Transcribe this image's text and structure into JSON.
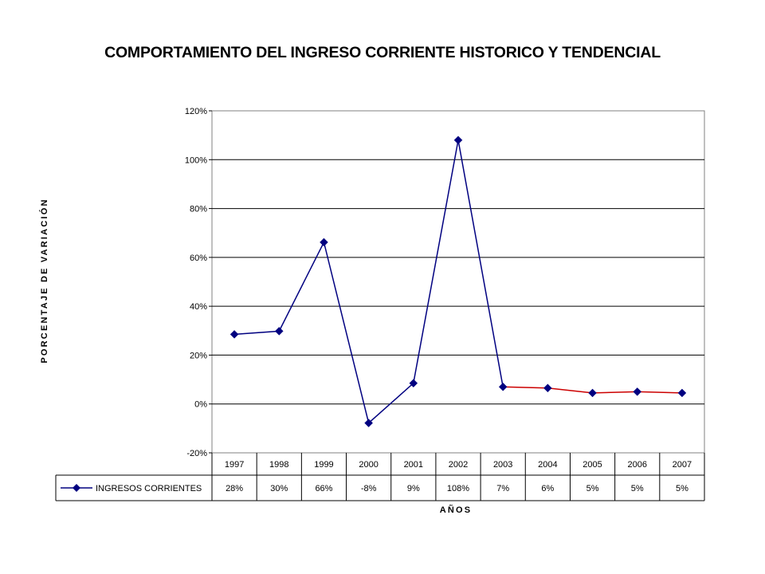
{
  "chart_data": {
    "type": "line",
    "title": "COMPORTAMIENTO DEL INGRESO CORRIENTE HISTORICO Y TENDENCIAL",
    "xlabel": "AÑOS",
    "ylabel": "PORCENTAJE DE VARIACIÓN",
    "categories": [
      "1997",
      "1998",
      "1999",
      "2000",
      "2001",
      "2002",
      "2003",
      "2004",
      "2005",
      "2006",
      "2007"
    ],
    "ylim": [
      -20,
      120
    ],
    "y_ticks": [
      -20,
      0,
      20,
      40,
      60,
      80,
      100,
      120
    ],
    "y_tick_labels": [
      "-20%",
      "0%",
      "20%",
      "40%",
      "60%",
      "80%",
      "100%",
      "120%"
    ],
    "grid": true,
    "series": [
      {
        "name": "INGRESOS CORRIENTES",
        "values": [
          28.5,
          29.8,
          66.2,
          -7.8,
          8.5,
          108,
          7,
          6.5,
          4.5,
          5,
          4.5
        ],
        "table_labels": [
          "28%",
          "30%",
          "66%",
          "-8%",
          "9%",
          "108%",
          "7%",
          "6%",
          "5%",
          "5%",
          "5%"
        ],
        "historical_color": "#000080",
        "trend_color": "#cc0000",
        "trend_start_index": 6,
        "marker": "diamond"
      }
    ]
  }
}
